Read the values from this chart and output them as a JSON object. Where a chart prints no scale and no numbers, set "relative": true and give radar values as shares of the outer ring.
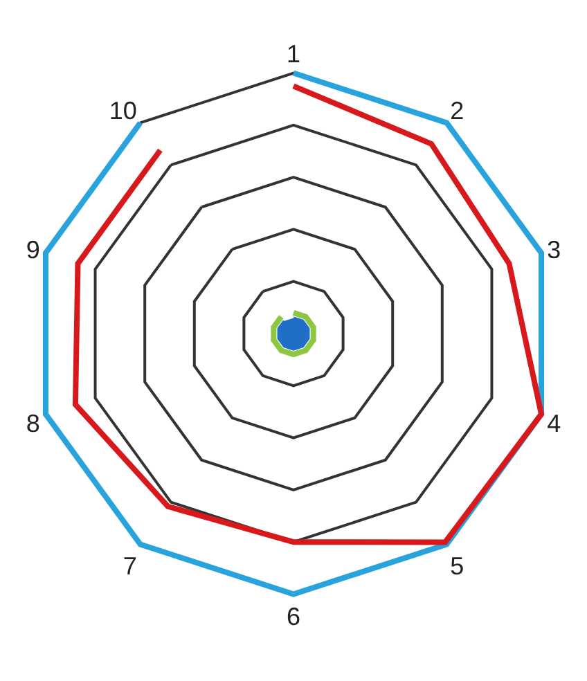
{
  "chart_data": {
    "type": "radar",
    "relative": true,
    "legend": false,
    "grid": true,
    "categories": [
      "1",
      "2",
      "3",
      "4",
      "5",
      "6",
      "7",
      "8",
      "9",
      "10"
    ],
    "series": [
      {
        "color": "#29a3dc",
        "values": [
          1,
          1,
          1,
          1,
          1,
          1,
          1,
          1,
          1,
          1
        ]
      },
      {
        "color": "#d7191c",
        "values": [
          0.95,
          0.9,
          0.87,
          1.0,
          0.99,
          0.8,
          0.82,
          0.88,
          0.87,
          0.87
        ]
      },
      {
        "color": "#8dc63f",
        "values": [
          0.08,
          0.08,
          0.08,
          0.08,
          0.08,
          0.08,
          0.08,
          0.08,
          0.08,
          0.08
        ]
      },
      {
        "color": "#1f6fc7",
        "values": [
          0.06,
          0.06,
          0.06,
          0.06,
          0.06,
          0.06,
          0.06,
          0.06,
          0.06,
          0.06
        ]
      }
    ]
  }
}
